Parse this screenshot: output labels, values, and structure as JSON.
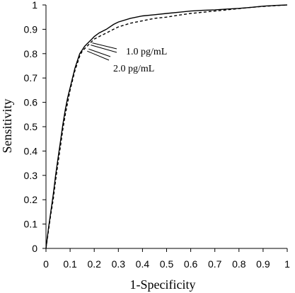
{
  "chart_data": {
    "type": "line",
    "xlabel": "1-Specificity",
    "ylabel": "Sensitivity",
    "xlim": [
      0,
      1
    ],
    "ylim": [
      0,
      1
    ],
    "x_ticks": [
      "0",
      "0.1",
      "0.2",
      "0.3",
      "0.4",
      "0.5",
      "0.6",
      "0.7",
      "0.8",
      "0.9",
      "1"
    ],
    "y_ticks": [
      "0",
      "0.1",
      "0.2",
      "0.3",
      "0.4",
      "0.5",
      "0.6",
      "0.7",
      "0.8",
      "0.9",
      "1"
    ],
    "grid": false,
    "legend": "none",
    "series": [
      {
        "style": "solid",
        "color": "#000000",
        "x": [
          0,
          0.005,
          0.01,
          0.02,
          0.03,
          0.04,
          0.05,
          0.06,
          0.07,
          0.08,
          0.09,
          0.1,
          0.11,
          0.12,
          0.13,
          0.14,
          0.15,
          0.16,
          0.17,
          0.18,
          0.19,
          0.2,
          0.22,
          0.25,
          0.28,
          0.3,
          0.35,
          0.4,
          0.45,
          0.5,
          0.55,
          0.6,
          0.65,
          0.7,
          0.75,
          0.8,
          0.85,
          0.9,
          0.95,
          1
        ],
        "y": [
          0,
          0.04,
          0.08,
          0.15,
          0.22,
          0.3,
          0.37,
          0.44,
          0.51,
          0.57,
          0.62,
          0.66,
          0.7,
          0.74,
          0.77,
          0.8,
          0.815,
          0.83,
          0.84,
          0.85,
          0.86,
          0.87,
          0.885,
          0.9,
          0.92,
          0.93,
          0.945,
          0.955,
          0.96,
          0.965,
          0.97,
          0.975,
          0.978,
          0.98,
          0.983,
          0.986,
          0.99,
          0.995,
          0.998,
          1
        ]
      },
      {
        "style": "dashed",
        "color": "#000000",
        "x": [
          0,
          0.005,
          0.01,
          0.02,
          0.03,
          0.04,
          0.05,
          0.06,
          0.07,
          0.08,
          0.09,
          0.1,
          0.11,
          0.12,
          0.13,
          0.14,
          0.15,
          0.16,
          0.17,
          0.18,
          0.19,
          0.2,
          0.22,
          0.25,
          0.28,
          0.3,
          0.35,
          0.4,
          0.45,
          0.5,
          0.55,
          0.6,
          0.65,
          0.7,
          0.75,
          0.8,
          0.85,
          0.9,
          0.95,
          1
        ],
        "y": [
          0,
          0.035,
          0.07,
          0.14,
          0.2,
          0.28,
          0.35,
          0.42,
          0.49,
          0.55,
          0.6,
          0.65,
          0.69,
          0.73,
          0.76,
          0.79,
          0.81,
          0.82,
          0.83,
          0.84,
          0.85,
          0.86,
          0.87,
          0.885,
          0.9,
          0.91,
          0.925,
          0.935,
          0.945,
          0.95,
          0.958,
          0.965,
          0.97,
          0.975,
          0.98,
          0.985,
          0.99,
          0.994,
          0.997,
          1
        ]
      }
    ],
    "annotations": [
      {
        "text": "1.0 pg/mL",
        "point": [
          0.18,
          0.85
        ]
      },
      {
        "text": "2.0 pg/mL",
        "point": [
          0.165,
          0.825
        ]
      }
    ]
  }
}
